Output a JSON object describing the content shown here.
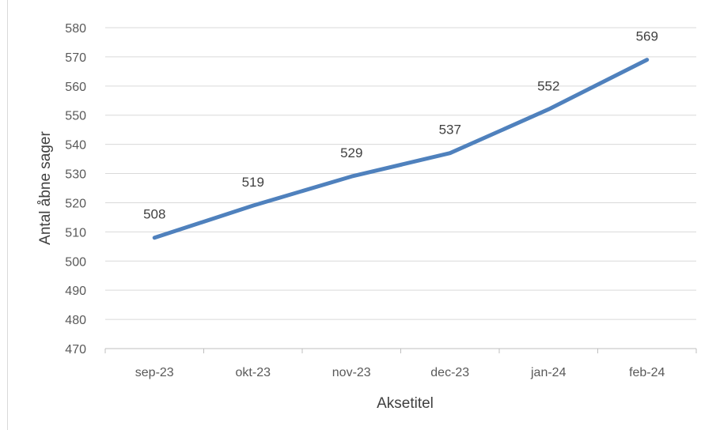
{
  "chart_data": {
    "type": "line",
    "title": "",
    "xlabel": "Aksetitel",
    "ylabel": "Antal åbne sager",
    "categories": [
      "sep-23",
      "okt-23",
      "nov-23",
      "dec-23",
      "jan-24",
      "feb-24"
    ],
    "series": [
      {
        "values": [
          508,
          519,
          529,
          537,
          552,
          569
        ],
        "color": "#4F81BD"
      }
    ],
    "data_labels": [
      "508",
      "519",
      "529",
      "537",
      "552",
      "569"
    ],
    "y_ticks": [
      "470",
      "480",
      "490",
      "500",
      "510",
      "520",
      "530",
      "540",
      "550",
      "560",
      "570",
      "580"
    ],
    "ylim": [
      470,
      580
    ],
    "y_step": 10,
    "grid": true,
    "legend": "none"
  }
}
